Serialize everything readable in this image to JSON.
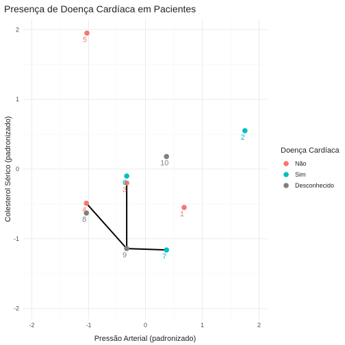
{
  "chart_data": {
    "type": "scatter",
    "title": "Presença de Doença Cardíaca em Pacientes",
    "xlabel": "Pressão Arterial (padronizado)",
    "ylabel": "Colesterol Sérico (padronizado)",
    "xlim": [
      -2.15,
      2.15
    ],
    "ylim": [
      -2.15,
      2.15
    ],
    "x_ticks": [
      "-2",
      "-1",
      "0",
      "1",
      "2"
    ],
    "y_ticks": [
      "-2",
      "-1",
      "0",
      "1",
      "2"
    ],
    "grid": true,
    "legend": {
      "title": "Doença Cardíaca",
      "position": "right",
      "items": [
        {
          "label": "Não",
          "color": "#F8766D"
        },
        {
          "label": "Sim",
          "color": "#00BFC4"
        },
        {
          "label": "Desconhecido",
          "color": "#7F7F7F"
        }
      ]
    },
    "points": [
      {
        "id": "1",
        "x": 0.68,
        "y": -0.55,
        "group": "Não"
      },
      {
        "id": "2",
        "x": 1.75,
        "y": 0.55,
        "group": "Sim"
      },
      {
        "id": "3",
        "x": -0.33,
        "y": -0.2,
        "group": "Não"
      },
      {
        "id": "4",
        "x": -1.04,
        "y": -0.49,
        "group": "Não"
      },
      {
        "id": "5",
        "x": -1.03,
        "y": 1.95,
        "group": "Não"
      },
      {
        "id": "6",
        "x": -0.33,
        "y": -0.1,
        "group": "Sim"
      },
      {
        "id": "7",
        "x": 0.37,
        "y": -1.16,
        "group": "Sim"
      },
      {
        "id": "8",
        "x": -1.04,
        "y": -0.63,
        "group": "Desconhecido"
      },
      {
        "id": "9",
        "x": -0.33,
        "y": -1.14,
        "group": "Desconhecido"
      },
      {
        "id": "10",
        "x": 0.37,
        "y": 0.18,
        "group": "Desconhecido"
      }
    ],
    "segments": [
      [
        {
          "x": -1.04,
          "y": -0.49
        },
        {
          "x": -0.33,
          "y": -1.14
        }
      ],
      [
        {
          "x": -0.33,
          "y": -0.2
        },
        {
          "x": -0.33,
          "y": -1.14
        }
      ],
      [
        {
          "x": -0.33,
          "y": -1.14
        },
        {
          "x": 0.37,
          "y": -1.16
        }
      ]
    ]
  }
}
